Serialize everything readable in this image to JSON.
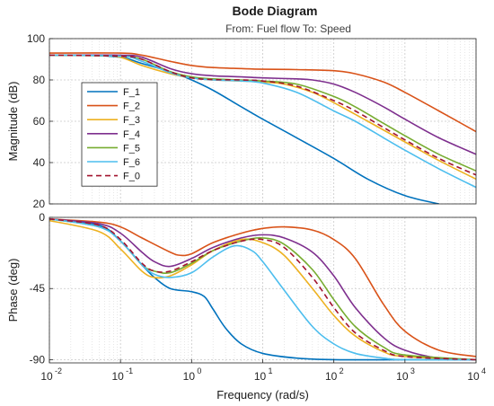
{
  "title": "Bode Diagram",
  "subtitle": "From: Fuel flow  To: Speed",
  "chart_data": [
    {
      "type": "line",
      "panel": "magnitude",
      "xscale": "log",
      "xlim": [
        0.01,
        10000
      ],
      "ylim": [
        20,
        100
      ],
      "yticks": [
        "20",
        "40",
        "60",
        "80",
        "100"
      ],
      "ylabel": "Magnitude (dB)",
      "grid": true,
      "legend_position": "upper-left",
      "series": [
        {
          "name": "F_1",
          "color": "#0072BD",
          "dashed": false,
          "x": [
            0.01,
            0.03,
            0.1,
            0.2,
            0.5,
            1,
            2,
            5,
            10,
            30,
            100,
            300,
            1000,
            3000
          ],
          "y": [
            92,
            92,
            91,
            88,
            84,
            80,
            75,
            67,
            61,
            52,
            42,
            32,
            24,
            20
          ]
        },
        {
          "name": "F_2",
          "color": "#D95319",
          "dashed": false,
          "x": [
            0.01,
            0.1,
            0.2,
            0.5,
            1,
            2,
            5,
            10,
            30,
            100,
            200,
            500,
            1000,
            3000,
            10000
          ],
          "y": [
            93,
            93,
            92,
            89,
            87,
            86,
            85.5,
            85.2,
            85,
            84.5,
            83,
            79,
            74,
            65,
            55
          ]
        },
        {
          "name": "F_3",
          "color": "#EDB120",
          "dashed": false,
          "x": [
            0.01,
            0.05,
            0.1,
            0.2,
            0.5,
            1,
            2,
            5,
            10,
            20,
            50,
            100,
            300,
            1000,
            3000,
            10000
          ],
          "y": [
            92,
            92,
            91,
            87,
            83,
            81,
            80,
            79.5,
            79,
            78,
            74,
            69,
            60,
            50,
            41,
            32
          ]
        },
        {
          "name": "F_4",
          "color": "#7E2F8E",
          "dashed": false,
          "x": [
            0.01,
            0.1,
            0.2,
            0.5,
            1,
            2,
            5,
            10,
            30,
            50,
            100,
            200,
            500,
            1000,
            3000,
            10000
          ],
          "y": [
            92,
            92,
            91,
            85.5,
            83,
            82,
            81.5,
            81,
            80.5,
            80,
            78,
            74,
            67,
            61,
            52,
            44
          ]
        },
        {
          "name": "F_5",
          "color": "#77AC30",
          "dashed": false,
          "x": [
            0.01,
            0.1,
            0.2,
            0.5,
            1,
            2,
            5,
            10,
            30,
            100,
            200,
            500,
            1000,
            3000,
            10000
          ],
          "y": [
            92,
            91.5,
            90,
            84,
            81.5,
            80.5,
            80,
            79.5,
            78,
            72,
            67,
            59,
            53,
            44,
            36
          ]
        },
        {
          "name": "F_6",
          "color": "#4DBEEE",
          "dashed": false,
          "x": [
            0.01,
            0.1,
            0.2,
            0.5,
            1,
            2,
            5,
            10,
            30,
            100,
            200,
            500,
            1000,
            3000,
            10000
          ],
          "y": [
            92,
            91.5,
            89,
            83.5,
            81,
            80,
            79.5,
            78.5,
            74,
            65,
            60,
            52,
            46,
            37,
            28
          ]
        },
        {
          "name": "F_0",
          "color": "#A2142F",
          "dashed": true,
          "x": [
            0.01,
            0.1,
            0.2,
            0.5,
            1,
            2,
            5,
            10,
            30,
            100,
            200,
            500,
            1000,
            3000,
            10000
          ],
          "y": [
            92,
            91.5,
            90,
            84,
            81,
            80.2,
            80,
            79.5,
            77,
            70,
            65,
            57,
            51,
            42,
            34
          ]
        }
      ]
    },
    {
      "type": "line",
      "panel": "phase",
      "xscale": "log",
      "xlim": [
        0.01,
        10000
      ],
      "ylim": [
        -92,
        0
      ],
      "yticks": [
        "0",
        "-45",
        "-90"
      ],
      "xticks": [
        "10",
        "10",
        "10",
        "10",
        "10",
        "10",
        "10"
      ],
      "xtick_exponents": [
        "-2",
        "-1",
        "0",
        "1",
        "2",
        "3",
        "4"
      ],
      "ylabel": "Phase (deg)",
      "xlabel": "Frequency  (rad/s)",
      "grid": true,
      "series": [
        {
          "name": "F_1",
          "color": "#0072BD",
          "dashed": false,
          "x": [
            0.01,
            0.05,
            0.1,
            0.2,
            0.3,
            0.5,
            1,
            1.5,
            2,
            3,
            5,
            10,
            30,
            100,
            1000,
            10000
          ],
          "y": [
            -1,
            -5,
            -15,
            -30,
            -38,
            -45,
            -47,
            -50,
            -58,
            -70,
            -80,
            -86,
            -89,
            -90,
            -90,
            -90
          ]
        },
        {
          "name": "F_2",
          "color": "#D95319",
          "dashed": false,
          "x": [
            0.01,
            0.05,
            0.1,
            0.2,
            0.5,
            0.7,
            1,
            2,
            5,
            10,
            20,
            50,
            100,
            200,
            500,
            1000,
            3000,
            10000
          ],
          "y": [
            -1,
            -3,
            -6,
            -13,
            -22,
            -24,
            -23,
            -16,
            -10,
            -7,
            -6,
            -8,
            -14,
            -26,
            -55,
            -72,
            -84,
            -88
          ]
        },
        {
          "name": "F_3",
          "color": "#EDB120",
          "dashed": false,
          "x": [
            0.01,
            0.05,
            0.1,
            0.2,
            0.3,
            0.5,
            1,
            2,
            5,
            10,
            20,
            50,
            100,
            200,
            500,
            1000,
            10000
          ],
          "y": [
            -2,
            -9,
            -20,
            -34,
            -38,
            -37,
            -30,
            -21,
            -14,
            -16,
            -24,
            -45,
            -62,
            -75,
            -85,
            -88,
            -90
          ]
        },
        {
          "name": "F_4",
          "color": "#7E2F8E",
          "dashed": false,
          "x": [
            0.01,
            0.05,
            0.1,
            0.2,
            0.3,
            0.5,
            1,
            2,
            5,
            10,
            20,
            50,
            100,
            200,
            500,
            1000,
            3000,
            10000
          ],
          "y": [
            -1,
            -4,
            -10,
            -22,
            -28,
            -31,
            -26,
            -19,
            -13,
            -11,
            -13,
            -22,
            -37,
            -57,
            -76,
            -84,
            -89,
            -90
          ]
        },
        {
          "name": "F_5",
          "color": "#77AC30",
          "dashed": false,
          "x": [
            0.01,
            0.05,
            0.1,
            0.2,
            0.3,
            0.5,
            1,
            2,
            5,
            10,
            20,
            50,
            100,
            200,
            500,
            1000,
            10000
          ],
          "y": [
            -1,
            -6,
            -15,
            -30,
            -34,
            -35,
            -29,
            -21,
            -15,
            -13,
            -17,
            -33,
            -52,
            -69,
            -82,
            -87,
            -90
          ]
        },
        {
          "name": "F_6",
          "color": "#4DBEEE",
          "dashed": false,
          "x": [
            0.01,
            0.05,
            0.1,
            0.2,
            0.3,
            0.5,
            1,
            2,
            4,
            7,
            10,
            20,
            50,
            100,
            200,
            500,
            1000,
            10000
          ],
          "y": [
            -1,
            -6,
            -15,
            -30,
            -36,
            -38,
            -35,
            -25,
            -18,
            -21,
            -28,
            -46,
            -69,
            -80,
            -86,
            -89,
            -90,
            -90
          ]
        },
        {
          "name": "F_0",
          "color": "#A2142F",
          "dashed": true,
          "x": [
            0.01,
            0.05,
            0.1,
            0.2,
            0.3,
            0.5,
            1,
            2,
            5,
            10,
            20,
            50,
            100,
            200,
            500,
            1000,
            10000
          ],
          "y": [
            -1,
            -5,
            -14,
            -29,
            -34,
            -34,
            -28,
            -21,
            -15,
            -14,
            -19,
            -38,
            -57,
            -73,
            -84,
            -88,
            -90
          ]
        }
      ]
    }
  ]
}
